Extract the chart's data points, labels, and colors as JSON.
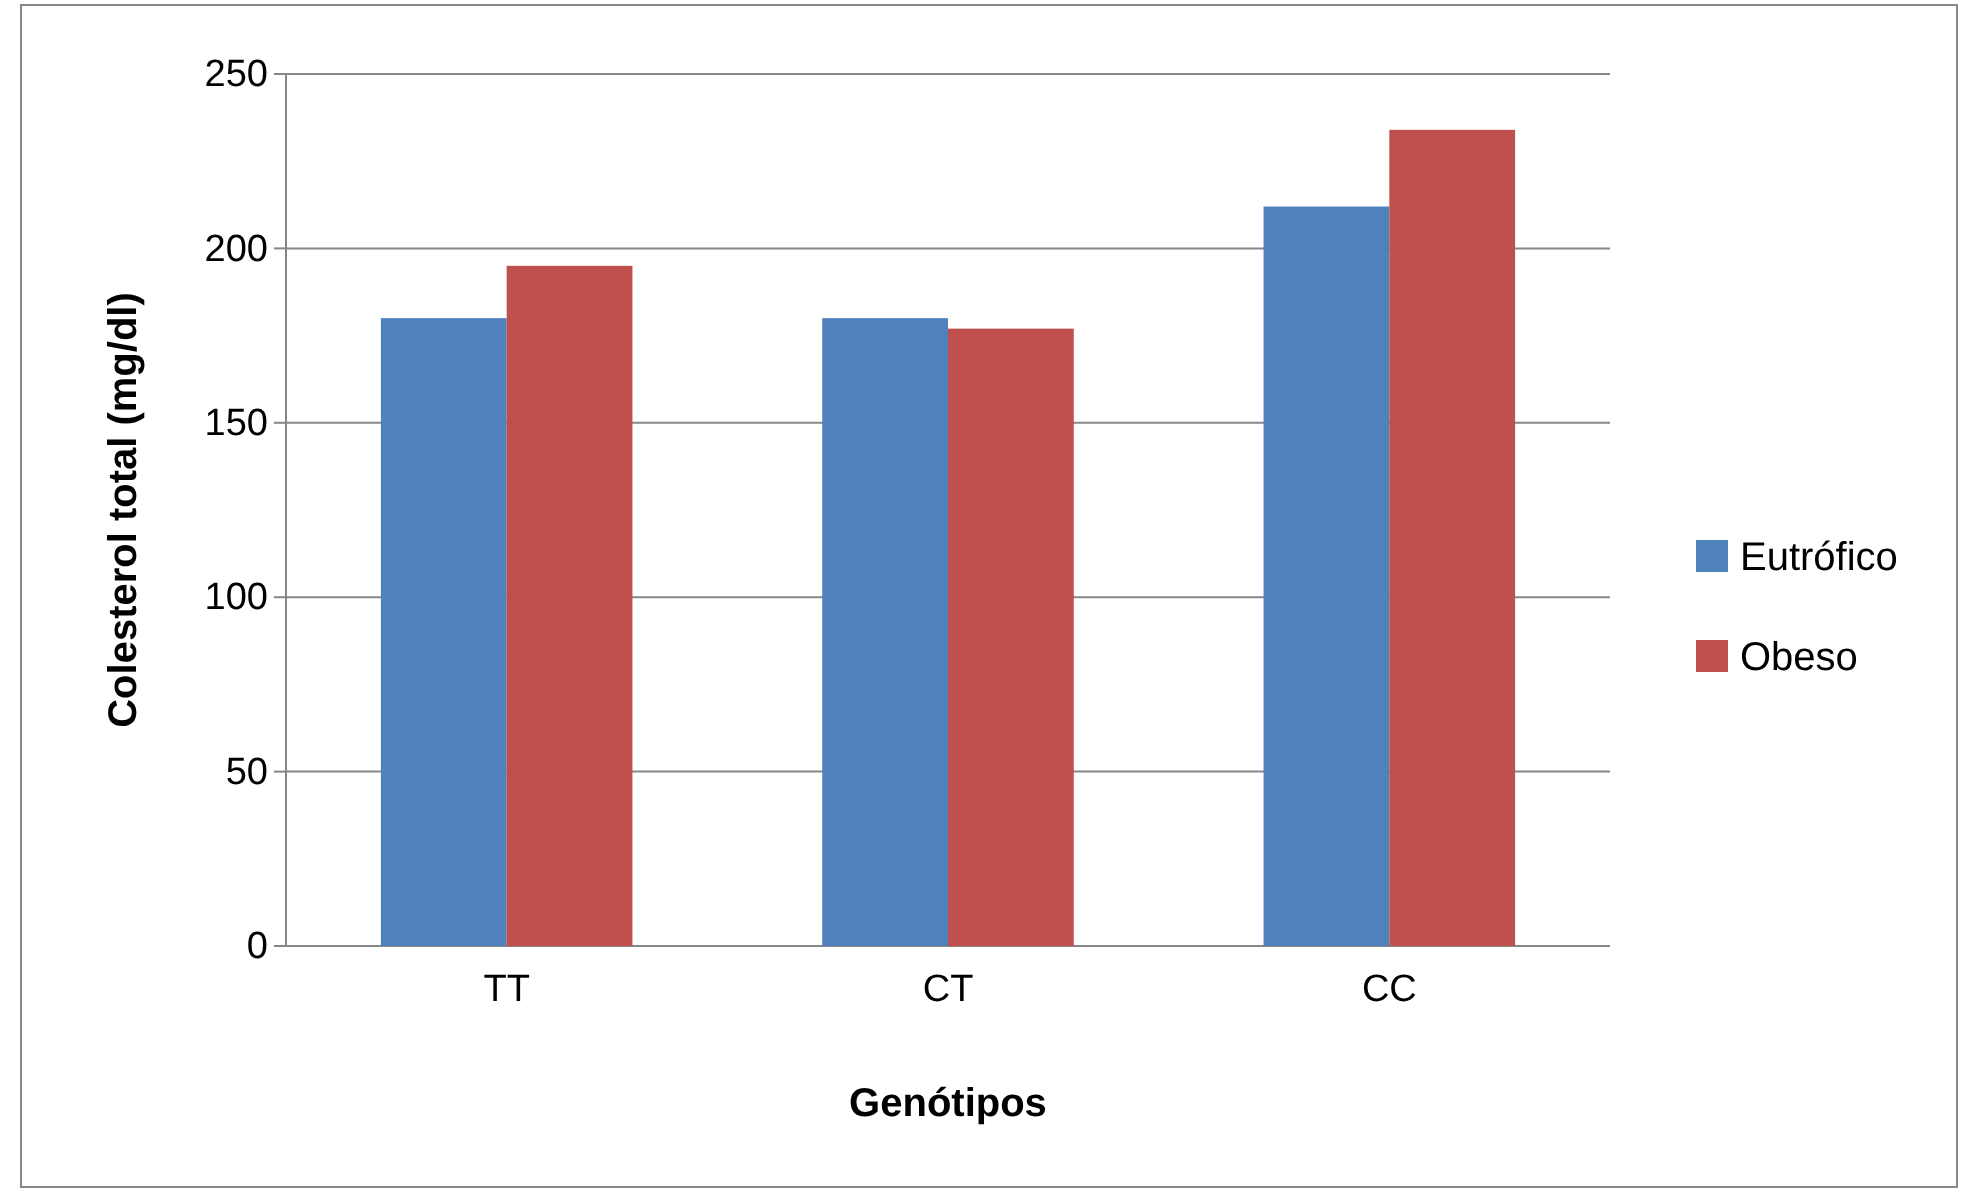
{
  "chart_data": {
    "type": "bar",
    "xlabel": "Genótipos",
    "ylabel": "Colesterol total (mg/dl)",
    "categories": [
      "TT",
      "CT",
      "CC"
    ],
    "series": [
      {
        "name": "Eutrófico",
        "color": "#4f81bd",
        "values": [
          180,
          180,
          212
        ]
      },
      {
        "name": "Obeso",
        "color": "#c0504d",
        "values": [
          195,
          177,
          234
        ]
      }
    ],
    "ylim": [
      0,
      250
    ],
    "yticks": [
      0,
      50,
      100,
      150,
      200,
      250
    ],
    "grid": "y",
    "legend": "right"
  }
}
